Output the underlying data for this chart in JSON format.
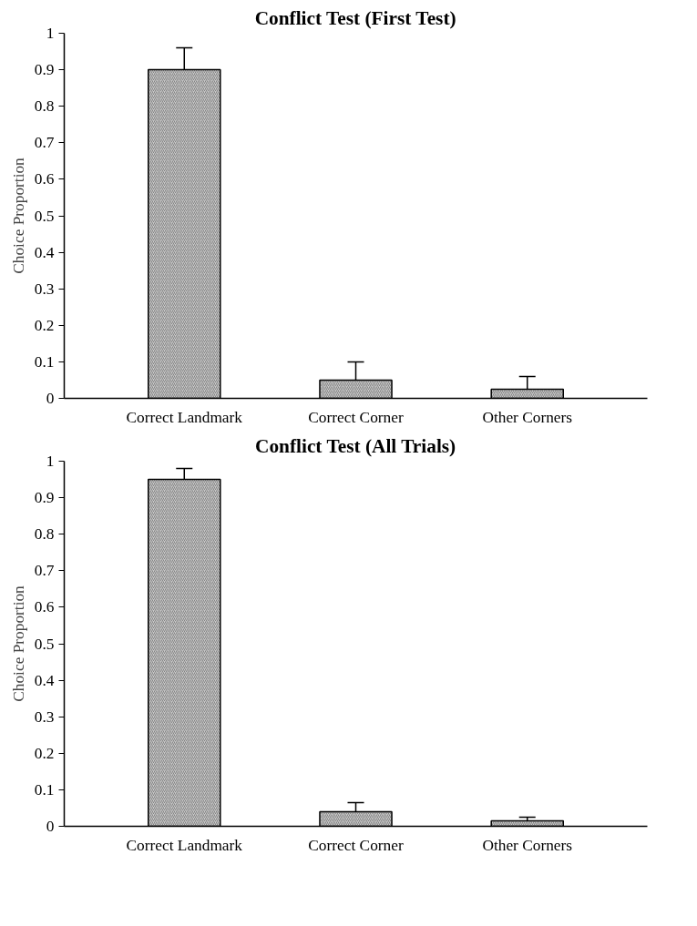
{
  "chart_data": [
    {
      "type": "bar",
      "title": "Conflict Test (First Test)",
      "ylabel": "Choice Proportion",
      "categories": [
        "Correct Landmark",
        "Correct Corner",
        "Other Corners"
      ],
      "values": [
        0.9,
        0.05,
        0.025
      ],
      "errors": [
        0.06,
        0.05,
        [
          0.0,
          0.06
        ]
      ],
      "color": "#c8c8c8",
      "ylim": [
        0,
        1
      ],
      "yticks": [
        0,
        0.1,
        0.2,
        0.3,
        0.4,
        0.5,
        0.6,
        0.7,
        0.8,
        0.9,
        1
      ],
      "grid": false
    },
    {
      "type": "bar",
      "title": "Conflict Test (All Trials)",
      "ylabel": "Choice Proportion",
      "categories": [
        "Correct Landmark",
        "Correct Corner",
        "Other Corners"
      ],
      "values": [
        0.95,
        0.04,
        0.015
      ],
      "errors": [
        0.03,
        [
          0.015,
          0.065
        ],
        0.01
      ],
      "color": "#c8c8c8",
      "ylim": [
        0,
        1
      ],
      "yticks": [
        0,
        0.1,
        0.2,
        0.3,
        0.4,
        0.5,
        0.6,
        0.7,
        0.8,
        0.9,
        1
      ],
      "grid": false
    }
  ]
}
